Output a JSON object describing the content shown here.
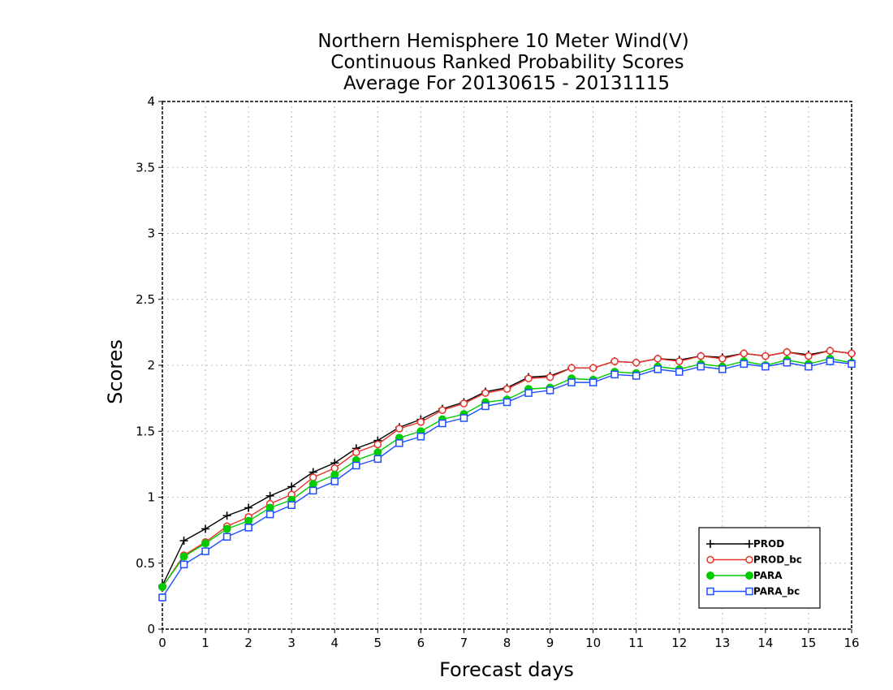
{
  "chart_data": {
    "type": "line",
    "title": "Northern Hemisphere 10 Meter Wind(V)",
    "subtitle": "Continuous Ranked Probability Scores",
    "subtitle2": "Average For 20130615 - 20131115",
    "xlabel": "Forecast days",
    "ylabel": "Scores",
    "xlim": [
      0,
      16
    ],
    "ylim": [
      0,
      4
    ],
    "xticks": [
      "0",
      "1",
      "2",
      "3",
      "4",
      "5",
      "6",
      "7",
      "8",
      "9",
      "10",
      "11",
      "12",
      "13",
      "14",
      "15",
      "16"
    ],
    "yticks": [
      "0",
      "0.5",
      "1",
      "1.5",
      "2",
      "2.5",
      "3",
      "3.5",
      "4"
    ],
    "grid": true,
    "legend_position": "bottom-right",
    "x": [
      0,
      0.5,
      1,
      1.5,
      2,
      2.5,
      3,
      3.5,
      4,
      4.5,
      5,
      5.5,
      6,
      6.5,
      7,
      7.5,
      8,
      8.5,
      9,
      9.5,
      10,
      10.5,
      11,
      11.5,
      12,
      12.5,
      13,
      13.5,
      14,
      14.5,
      15,
      15.5,
      16
    ],
    "series": [
      {
        "name": "PROD",
        "color": "#000000",
        "marker": "plus",
        "values": [
          0.33,
          0.67,
          0.76,
          0.86,
          0.92,
          1.01,
          1.08,
          1.19,
          1.26,
          1.37,
          1.43,
          1.53,
          1.59,
          1.67,
          1.72,
          1.8,
          1.83,
          1.91,
          1.92,
          1.98,
          1.98,
          2.03,
          2.02,
          2.05,
          2.04,
          2.07,
          2.06,
          2.09,
          2.07,
          2.1,
          2.08,
          2.11,
          2.09
        ]
      },
      {
        "name": "PROD_bc",
        "color": "#e8332b",
        "marker": "circle-open",
        "values": [
          0.32,
          0.56,
          0.66,
          0.78,
          0.85,
          0.95,
          1.02,
          1.15,
          1.22,
          1.34,
          1.4,
          1.52,
          1.57,
          1.66,
          1.71,
          1.79,
          1.82,
          1.9,
          1.91,
          1.98,
          1.98,
          2.03,
          2.02,
          2.05,
          2.03,
          2.07,
          2.05,
          2.09,
          2.07,
          2.1,
          2.07,
          2.11,
          2.09
        ]
      },
      {
        "name": "PARA",
        "color": "#00cc00",
        "marker": "circle-filled",
        "values": [
          0.32,
          0.55,
          0.65,
          0.76,
          0.82,
          0.92,
          0.98,
          1.1,
          1.17,
          1.28,
          1.34,
          1.45,
          1.5,
          1.59,
          1.63,
          1.72,
          1.74,
          1.82,
          1.83,
          1.9,
          1.89,
          1.95,
          1.94,
          1.99,
          1.97,
          2.01,
          1.99,
          2.03,
          2.0,
          2.04,
          2.01,
          2.05,
          2.02
        ]
      },
      {
        "name": "PARA_bc",
        "color": "#1f4fff",
        "marker": "square-open",
        "values": [
          0.24,
          0.49,
          0.59,
          0.7,
          0.77,
          0.87,
          0.94,
          1.05,
          1.12,
          1.24,
          1.29,
          1.41,
          1.46,
          1.56,
          1.6,
          1.69,
          1.72,
          1.79,
          1.81,
          1.87,
          1.87,
          1.93,
          1.92,
          1.97,
          1.95,
          1.99,
          1.97,
          2.01,
          1.99,
          2.02,
          1.99,
          2.03,
          2.01
        ]
      }
    ]
  }
}
